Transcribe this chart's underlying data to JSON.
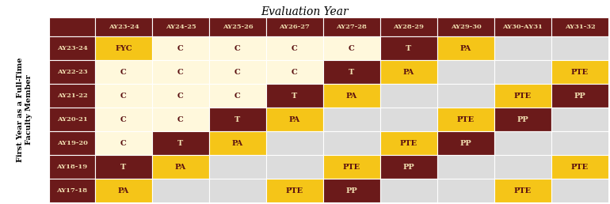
{
  "title": "Evaluation Year",
  "ylabel": "First Year as a Full-Time\nFaculty Member",
  "col_headers": [
    "AY23-24",
    "AY24-25",
    "AY25-26",
    "AY26-27",
    "AY27-28",
    "AY28-29",
    "AY29-30",
    "AY30-AY31",
    "AY31-32"
  ],
  "row_headers": [
    "AY23-24",
    "AY22-23",
    "AY21-22",
    "AY20-21",
    "AY19-20",
    "AY18-19",
    "AY17-18"
  ],
  "cells": [
    [
      "FYC",
      "C",
      "C",
      "C",
      "C",
      "T",
      "PA",
      "",
      ""
    ],
    [
      "C",
      "C",
      "C",
      "C",
      "T",
      "PA",
      "",
      "",
      "PTE"
    ],
    [
      "C",
      "C",
      "C",
      "T",
      "PA",
      "",
      "",
      "PTE",
      "PP"
    ],
    [
      "C",
      "C",
      "T",
      "PA",
      "",
      "",
      "PTE",
      "PP",
      ""
    ],
    [
      "C",
      "T",
      "PA",
      "",
      "",
      "PTE",
      "PP",
      "",
      ""
    ],
    [
      "T",
      "PA",
      "",
      "",
      "PTE",
      "PP",
      "",
      "",
      "PTE"
    ],
    [
      "PA",
      "",
      "",
      "PTE",
      "PP",
      "",
      "",
      "PTE",
      ""
    ]
  ],
  "cell_colors": [
    [
      "gold",
      "lightyellow",
      "lightyellow",
      "lightyellow",
      "lightyellow",
      "darkred",
      "gold",
      "lightgray",
      "lightgray"
    ],
    [
      "lightyellow",
      "lightyellow",
      "lightyellow",
      "lightyellow",
      "darkred",
      "gold",
      "lightgray",
      "lightgray",
      "gold"
    ],
    [
      "lightyellow",
      "lightyellow",
      "lightyellow",
      "darkred",
      "gold",
      "lightgray",
      "lightgray",
      "gold",
      "darkred"
    ],
    [
      "lightyellow",
      "lightyellow",
      "darkred",
      "gold",
      "lightgray",
      "lightgray",
      "gold",
      "darkred",
      "lightgray"
    ],
    [
      "lightyellow",
      "darkred",
      "gold",
      "lightgray",
      "lightgray",
      "gold",
      "darkred",
      "lightgray",
      "lightgray"
    ],
    [
      "darkred",
      "gold",
      "lightgray",
      "lightgray",
      "gold",
      "darkred",
      "lightgray",
      "lightgray",
      "gold"
    ],
    [
      "gold",
      "lightgray",
      "lightgray",
      "gold",
      "darkred",
      "lightgray",
      "lightgray",
      "gold",
      "lightgray"
    ]
  ],
  "header_bg": "#6B1A1A",
  "header_text": "#F0DEB0",
  "gold_hex": "#F5C518",
  "lightyellow_hex": "#FFF8DC",
  "darkred_hex": "#6B1A1A",
  "lightgray_hex": "#DCDCDC",
  "cell_text_dark": "#5A1010",
  "cell_text_light": "#F0DEB0",
  "title_fontsize": 10,
  "header_fontsize": 6,
  "cell_fontsize": 7,
  "ylabel_fontsize": 7
}
